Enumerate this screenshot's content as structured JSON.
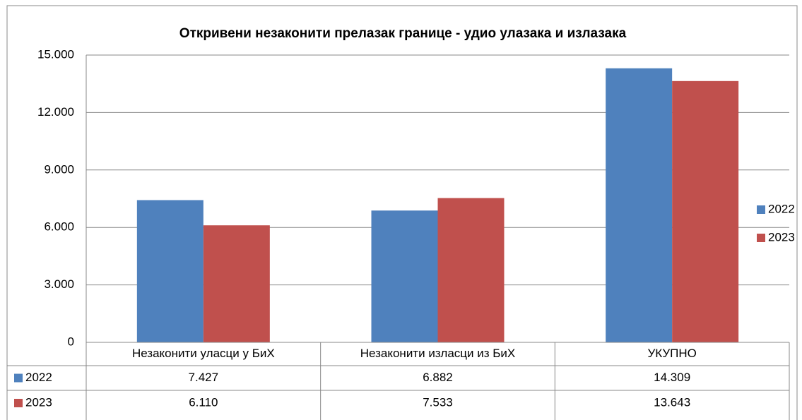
{
  "chart_data": {
    "type": "bar",
    "title": "Откривени незаконити прелазак границе - удио улазака и излазака",
    "categories": [
      "Незаконити уласци у БиХ",
      "Незаконити изласци из БиХ",
      "УКУПНО"
    ],
    "series": [
      {
        "name": "2022",
        "color": "#4f81bd",
        "values": [
          7427,
          6882,
          14309
        ],
        "value_labels": [
          "7.427",
          "6.882",
          "14.309"
        ]
      },
      {
        "name": "2023",
        "color": "#c0504d",
        "values": [
          6110,
          7533,
          13643
        ],
        "value_labels": [
          "6.110",
          "7.533",
          "13.643"
        ]
      }
    ],
    "ylim": [
      0,
      15000
    ],
    "yticks": [
      0,
      {
        "value": 3000,
        "label": "3.000"
      },
      {
        "value": 6000,
        "label": "6.000"
      },
      {
        "value": 9000,
        "label": "9.000"
      },
      {
        "value": 12000,
        "label": "12.000"
      },
      {
        "value": 15000,
        "label": "15.000"
      }
    ],
    "grid": true,
    "legend": "right",
    "data_table": true
  }
}
